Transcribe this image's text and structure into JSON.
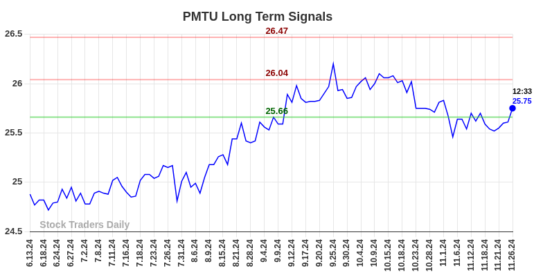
{
  "chart_data": {
    "type": "line",
    "title": "PMTU Long Term Signals",
    "color": "#0000ff",
    "grid": true,
    "ylim": [
      24.5,
      26.5
    ],
    "yticks": [
      24.5,
      25,
      25.5,
      26,
      26.5
    ],
    "categories": [
      "6.13.24",
      null,
      null,
      "6.18.24",
      null,
      null,
      "6.24.24",
      null,
      null,
      "6.27.24",
      null,
      null,
      "7.2.24",
      null,
      null,
      "7.8.24",
      null,
      null,
      "7.11.24",
      null,
      null,
      "7.16.24",
      null,
      null,
      "7.18.24",
      null,
      null,
      "7.23.24",
      null,
      null,
      "7.26.24",
      null,
      null,
      "7.31.24",
      null,
      null,
      "8.6.24",
      null,
      null,
      "8.9.24",
      null,
      null,
      "8.15.24",
      null,
      null,
      "8.21.24",
      null,
      null,
      "8.28.24",
      null,
      null,
      "9.4.24",
      null,
      null,
      "9.9.24",
      null,
      null,
      "9.12.24",
      null,
      null,
      "9.17.24",
      null,
      null,
      "9.20.24",
      null,
      null,
      "9.25.24",
      null,
      null,
      "9.30.24",
      null,
      null,
      "10.4.24",
      null,
      null,
      "10.9.24",
      null,
      null,
      "10.15.24",
      null,
      null,
      "10.18.24",
      null,
      null,
      "10.23.24",
      null,
      null,
      "10.28.24",
      null,
      null,
      "11.1.24",
      null,
      null,
      "11.6.24",
      null,
      null,
      "11.12.24",
      null,
      null,
      "11.18.24",
      null,
      null,
      "11.21.24",
      null,
      null,
      "11.26.24"
    ],
    "values": [
      24.88,
      24.77,
      24.82,
      24.82,
      24.72,
      24.79,
      24.8,
      24.93,
      24.84,
      24.95,
      24.81,
      24.89,
      24.78,
      24.78,
      24.89,
      24.91,
      24.89,
      24.88,
      25.02,
      25.05,
      24.96,
      24.9,
      24.85,
      24.86,
      25.02,
      25.08,
      25.08,
      25.04,
      25.06,
      25.17,
      25.15,
      25.17,
      24.81,
      25.01,
      25.1,
      24.95,
      24.99,
      24.89,
      25.05,
      25.18,
      25.18,
      25.26,
      25.28,
      25.18,
      25.44,
      25.44,
      25.6,
      25.42,
      25.4,
      25.42,
      25.61,
      25.56,
      25.53,
      25.66,
      25.59,
      25.59,
      25.89,
      25.81,
      25.98,
      25.85,
      25.81,
      25.82,
      25.82,
      25.83,
      25.9,
      25.97,
      26.2,
      25.93,
      25.94,
      25.85,
      25.86,
      25.97,
      26.02,
      26.06,
      25.94,
      26.0,
      26.1,
      26.06,
      26.06,
      26.08,
      26.01,
      26.03,
      25.91,
      26.02,
      25.75,
      25.75,
      25.75,
      25.74,
      25.71,
      25.81,
      25.83,
      25.67,
      25.46,
      25.64,
      25.64,
      25.54,
      25.7,
      25.62,
      25.7,
      25.59,
      25.54,
      25.52,
      25.55,
      25.6,
      25.61,
      25.75
    ],
    "annotations": [
      {
        "value": 26.47,
        "label": "26.47",
        "color": "#8b0000"
      },
      {
        "value": 26.04,
        "label": "26.04",
        "color": "#8b0000"
      },
      {
        "value": 25.66,
        "label": "25.66",
        "color": "#006400"
      }
    ],
    "end_labels": [
      "12:33",
      "25.75"
    ],
    "watermark": "Stock Traders Daily"
  }
}
